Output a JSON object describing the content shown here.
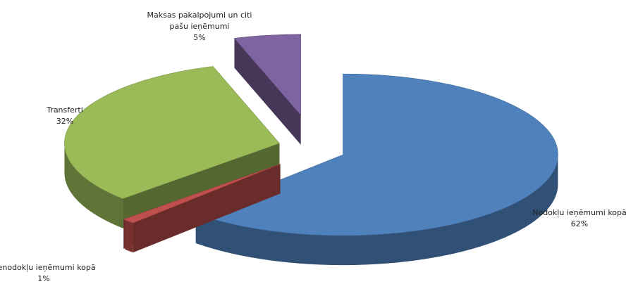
{
  "chart_data": {
    "type": "pie",
    "style": "3d-exploded",
    "title": "",
    "categories": [
      "Nodokļu ieņēmumi kopā",
      "Nenodokļu ieņēmumi kopā",
      "Transferti",
      "Maksas pakalpojumi un citi pašu ieņēmumi"
    ],
    "values": [
      62,
      1,
      32,
      5
    ],
    "percent_labels": [
      "62%",
      "1%",
      "32%",
      "5%"
    ],
    "label_lines": [
      [
        "Nodokļu ieņēmumi kopā",
        "62%"
      ],
      [
        "Nenodokļu ieņēmumi kopā",
        "1%"
      ],
      [
        "Transferti",
        "32%"
      ],
      [
        "Maksas pakalpojumi un citi",
        "pašu ieņēmumi",
        "5%"
      ]
    ],
    "colors": [
      "#4f81bd",
      "#c0504d",
      "#9bbb59",
      "#8064a2"
    ],
    "legend": false
  }
}
